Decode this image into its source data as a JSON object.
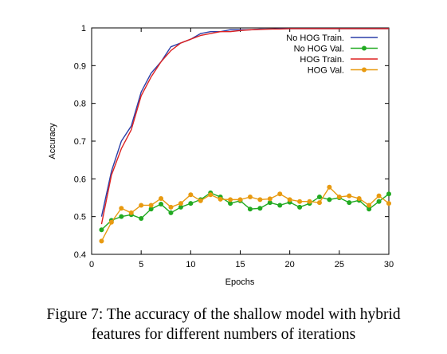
{
  "caption": {
    "line1": "Figure 7: The accuracy of the shallow model with hybrid",
    "line2": "features for different numbers of iterations"
  },
  "chart_data": {
    "type": "line",
    "title": "",
    "xlabel": "Epochs",
    "ylabel": "Accuracy",
    "xlim": [
      0,
      30
    ],
    "ylim": [
      0.4,
      1.0
    ],
    "x_ticks": [
      0,
      5,
      10,
      15,
      20,
      25,
      30
    ],
    "y_ticks": [
      0.4,
      0.5,
      0.6,
      0.7,
      0.8,
      0.9,
      1.0
    ],
    "x_tick_labels": [
      "0",
      "5",
      "10",
      "15",
      "20",
      "25",
      "30"
    ],
    "y_tick_labels": [
      "0.4",
      "0.5",
      "0.6",
      "0.7",
      "0.8",
      "0.9",
      "1"
    ],
    "grid": false,
    "legend_position": "top-right",
    "x": [
      1,
      2,
      3,
      4,
      5,
      6,
      7,
      8,
      9,
      10,
      11,
      12,
      13,
      14,
      15,
      16,
      17,
      18,
      19,
      20,
      21,
      22,
      23,
      24,
      25,
      26,
      27,
      28,
      29,
      30
    ],
    "series": [
      {
        "name": "No HOG Train.",
        "color": "#2b3fa8",
        "marker": "none",
        "values": [
          0.5,
          0.62,
          0.7,
          0.74,
          0.83,
          0.88,
          0.91,
          0.95,
          0.96,
          0.97,
          0.985,
          0.99,
          0.99,
          0.995,
          0.995,
          0.995,
          0.997,
          0.997,
          0.998,
          0.998,
          0.998,
          0.998,
          0.998,
          0.998,
          0.998,
          0.998,
          0.998,
          0.998,
          0.998,
          0.998
        ]
      },
      {
        "name": "No HOG Val.",
        "color": "#22aa22",
        "marker": "circle",
        "values": [
          0.465,
          0.49,
          0.5,
          0.505,
          0.495,
          0.52,
          0.533,
          0.51,
          0.525,
          0.535,
          0.545,
          0.563,
          0.552,
          0.535,
          0.542,
          0.52,
          0.522,
          0.537,
          0.53,
          0.538,
          0.525,
          0.535,
          0.552,
          0.545,
          0.55,
          0.537,
          0.543,
          0.52,
          0.54,
          0.56
        ]
      },
      {
        "name": "HOG Train.",
        "color": "#dd2222",
        "marker": "none",
        "values": [
          0.48,
          0.61,
          0.68,
          0.73,
          0.82,
          0.87,
          0.91,
          0.94,
          0.96,
          0.97,
          0.98,
          0.985,
          0.99,
          0.99,
          0.993,
          0.995,
          0.996,
          0.997,
          0.997,
          0.998,
          0.998,
          0.998,
          0.998,
          0.998,
          0.998,
          0.998,
          0.998,
          0.998,
          0.998,
          0.998
        ]
      },
      {
        "name": "HOG Val.",
        "color": "#e89a10",
        "marker": "circle",
        "values": [
          0.435,
          0.485,
          0.522,
          0.51,
          0.53,
          0.53,
          0.548,
          0.525,
          0.535,
          0.558,
          0.542,
          0.558,
          0.546,
          0.545,
          0.545,
          0.552,
          0.545,
          0.547,
          0.56,
          0.545,
          0.54,
          0.54,
          0.537,
          0.578,
          0.552,
          0.555,
          0.548,
          0.53,
          0.555,
          0.535
        ]
      }
    ]
  }
}
